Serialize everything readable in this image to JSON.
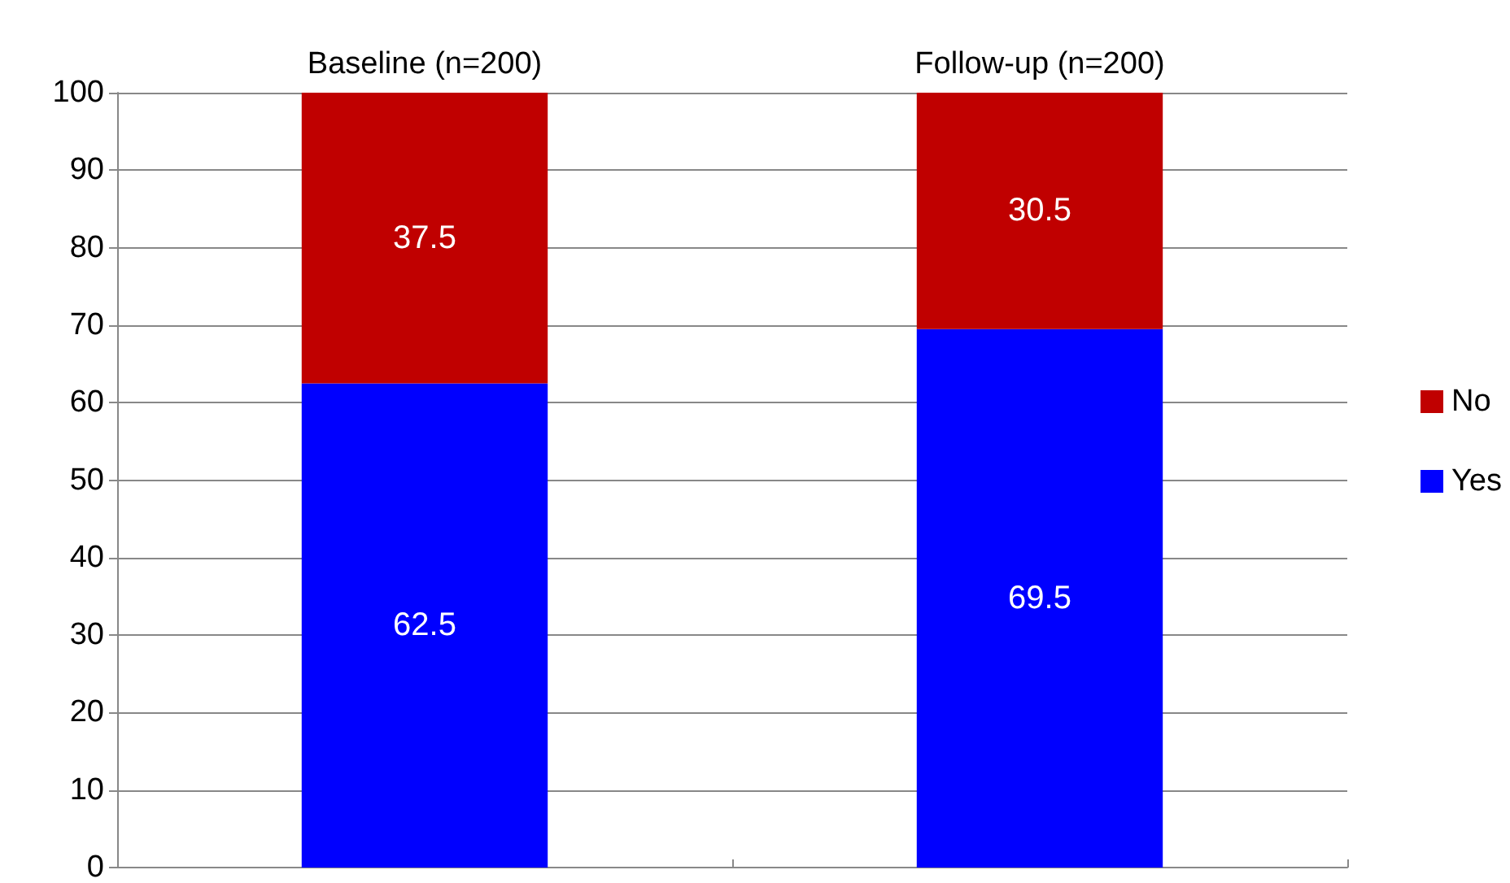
{
  "chart_data": {
    "type": "bar",
    "stacked": true,
    "categories": [
      "Baseline (n=200)",
      "Follow-up (n=200)"
    ],
    "series": [
      {
        "name": "Yes",
        "color": "#0000ff",
        "values": [
          62.5,
          69.5
        ]
      },
      {
        "name": "No",
        "color": "#c00000",
        "values": [
          37.5,
          30.5
        ]
      }
    ],
    "ylim": [
      0,
      100
    ],
    "yticks": [
      0,
      10,
      20,
      30,
      40,
      50,
      60,
      70,
      80,
      90,
      100
    ],
    "grid": "y",
    "legend": "right",
    "data_labels": true
  }
}
